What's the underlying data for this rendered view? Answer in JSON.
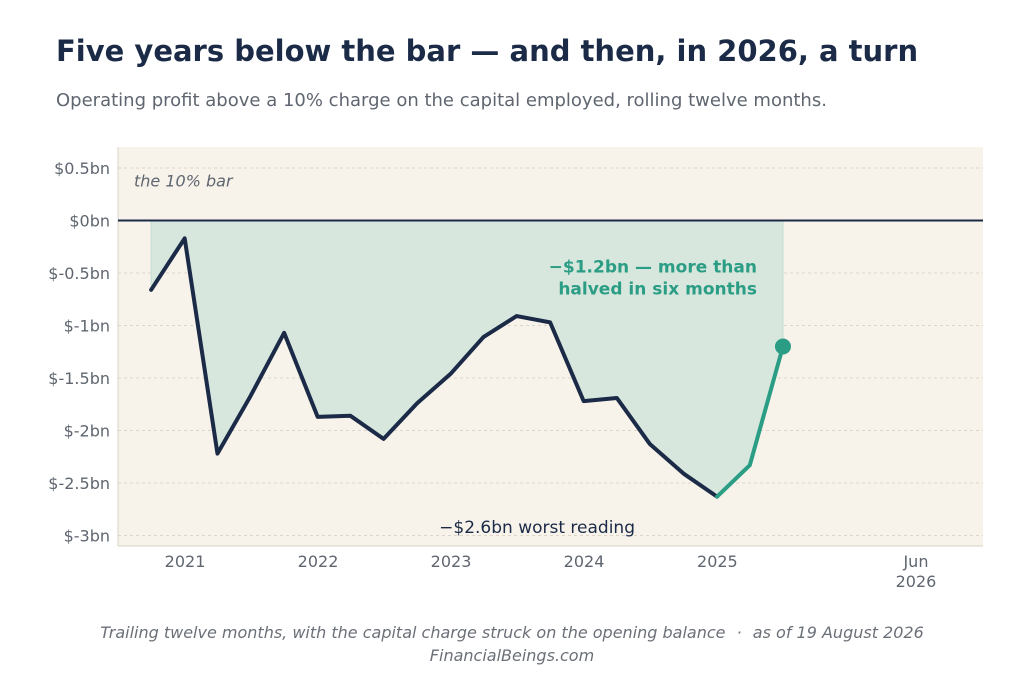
{
  "title": "Five years below the bar — and then, in 2026, a turn",
  "subtitle": "Operating profit above a 10% charge on the capital employed, rolling twelve months.",
  "footer": {
    "note": "Trailing twelve months, with the capital charge struck on the opening balance",
    "separator": "·",
    "asof": "as of 19 August 2026",
    "source": "FinancialBeings.com"
  },
  "colors": {
    "plot_bg": "#f7f3ea",
    "line": "#1b2a47",
    "accent": "#2a9d84",
    "fill": "#d3e6dd",
    "zero_line": "#1b2a47"
  },
  "chart_data": {
    "type": "line",
    "ylim": [
      -3.1,
      0.7
    ],
    "yticks": [
      0.5,
      0,
      -0.5,
      -1,
      -1.5,
      -2,
      -2.5,
      -3
    ],
    "ytick_labels": [
      "$0.5bn",
      "$0bn",
      "$-0.5bn",
      "$-1bn",
      "$-1.5bn",
      "$-2bn",
      "$-2.5bn",
      "$-3bn"
    ],
    "xlim": [
      "2020-07-01",
      "2026-12-31"
    ],
    "xticks": [
      "2021-01-01",
      "2022-01-01",
      "2023-01-01",
      "2024-01-01",
      "2025-01-01",
      "2026-06-30"
    ],
    "xtick_labels": [
      "2021",
      "2022",
      "2023",
      "2024",
      "2025",
      "Jun\n2026"
    ],
    "grid": true,
    "reference_line": {
      "y": 0,
      "label": "the 10% bar"
    },
    "series": [
      {
        "x": [
          "2020-09-30",
          "2020-12-31",
          "2021-03-31",
          "2021-06-30",
          "2021-09-30",
          "2021-12-31",
          "2022-03-31",
          "2022-06-30",
          "2022-09-30",
          "2022-12-31",
          "2023-03-31",
          "2023-06-30",
          "2023-09-30",
          "2023-12-31",
          "2024-03-31",
          "2024-06-30",
          "2024-09-30",
          "2024-12-31"
        ],
        "y": [
          -0.66,
          -0.17,
          -2.22,
          -1.67,
          -1.07,
          -1.87,
          -1.86,
          -2.08,
          -1.74,
          -1.46,
          -1.11,
          -0.91,
          -0.97,
          -1.72,
          -1.69,
          -2.13,
          -2.41,
          -2.63
        ],
        "color": "#1b2a47"
      },
      {
        "x": [
          "2024-12-31",
          "2025-03-31",
          "2025-06-30"
        ],
        "y": [
          -2.63,
          -2.33,
          -1.2
        ],
        "color": "#2a9d84"
      }
    ],
    "annotations": [
      {
        "text": "−$1.2bn — more than\nhalved in six months",
        "x": "2025-06-30",
        "y": -1.2,
        "color": "#2a9d84"
      },
      {
        "text": "−$2.6bn worst reading",
        "x": "2024-12-31",
        "y": -2.63,
        "color": "#1b2a47"
      }
    ]
  }
}
